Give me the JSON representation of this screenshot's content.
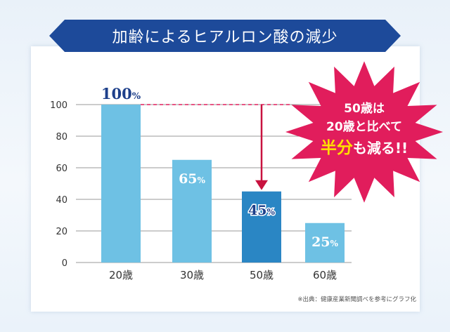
{
  "title": "加齢によるヒアルロン酸の減少",
  "colors": {
    "ribbon": "#1d4a9a",
    "bar_light": "#6ec1e4",
    "bar_highlight": "#2a86c4",
    "burst": "#e11d5c",
    "dashed_line": "#e11d5c",
    "arrow": "#c8123f",
    "label_dark": "#1d3f8a",
    "half_text": "#ffe000"
  },
  "chart_data": {
    "type": "bar",
    "title": "加齢によるヒアルロン酸の減少",
    "categories": [
      "20歳",
      "30歳",
      "50歳",
      "60歳"
    ],
    "values": [
      100,
      65,
      45,
      25
    ],
    "value_labels": [
      "100%",
      "65%",
      "45%",
      "25%"
    ],
    "highlight_index": 2,
    "ylim": [
      0,
      100
    ],
    "yticks": [
      0,
      20,
      40,
      60,
      80,
      100
    ],
    "xlabel": "",
    "ylabel": "",
    "grid": true,
    "annotations": [
      "100% reference dashed line",
      "arrow from 100% to 50歳 bar"
    ]
  },
  "callout": {
    "line1": "50歳は",
    "line2": "20歳と比べて",
    "line3_half": "半分",
    "line3_rest": "も減る!!"
  },
  "source_note": "※出典：健康産業新聞調べを参考にグラフ化"
}
